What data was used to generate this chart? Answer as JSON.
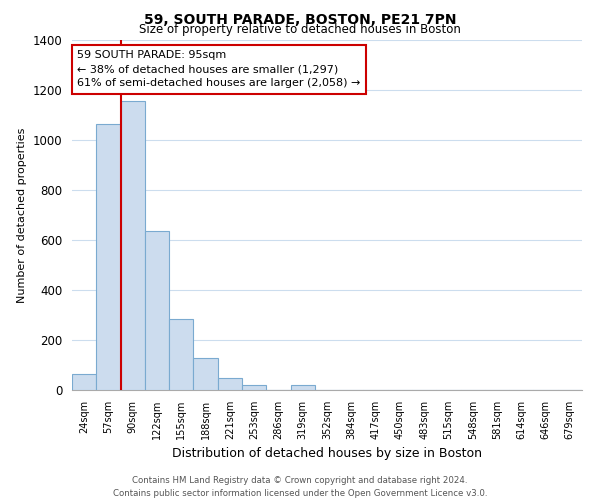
{
  "title": "59, SOUTH PARADE, BOSTON, PE21 7PN",
  "subtitle": "Size of property relative to detached houses in Boston",
  "xlabel": "Distribution of detached houses by size in Boston",
  "ylabel": "Number of detached properties",
  "bin_labels": [
    "24sqm",
    "57sqm",
    "90sqm",
    "122sqm",
    "155sqm",
    "188sqm",
    "221sqm",
    "253sqm",
    "286sqm",
    "319sqm",
    "352sqm",
    "384sqm",
    "417sqm",
    "450sqm",
    "483sqm",
    "515sqm",
    "548sqm",
    "581sqm",
    "614sqm",
    "646sqm",
    "679sqm"
  ],
  "bar_values": [
    65,
    1065,
    1155,
    635,
    285,
    130,
    47,
    20,
    0,
    20,
    0,
    0,
    0,
    0,
    0,
    0,
    0,
    0,
    0,
    0,
    0
  ],
  "bar_color": "#ccdcee",
  "bar_edge_color": "#7aaad0",
  "highlight_line_color": "#cc0000",
  "ylim": [
    0,
    1400
  ],
  "yticks": [
    0,
    200,
    400,
    600,
    800,
    1000,
    1200,
    1400
  ],
  "annotation_line1": "59 SOUTH PARADE: 95sqm",
  "annotation_line2": "← 38% of detached houses are smaller (1,297)",
  "annotation_line3": "61% of semi-detached houses are larger (2,058) →",
  "footer_line1": "Contains HM Land Registry data © Crown copyright and database right 2024.",
  "footer_line2": "Contains public sector information licensed under the Open Government Licence v3.0.",
  "background_color": "#ffffff",
  "grid_color": "#ccddee"
}
